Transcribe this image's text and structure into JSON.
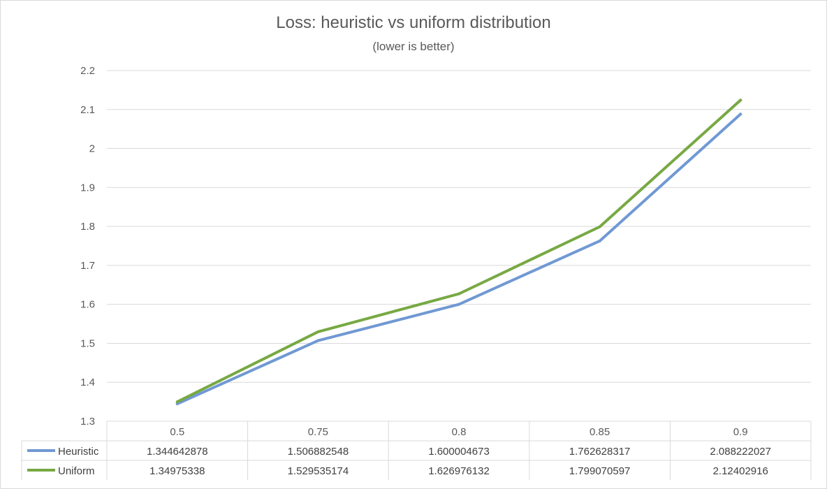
{
  "chart_data": {
    "type": "line",
    "title": "Loss: heuristic vs uniform distribution",
    "subtitle": "(lower is better)",
    "categories": [
      "0.5",
      "0.75",
      "0.8",
      "0.85",
      "0.9"
    ],
    "ylim": [
      1.3,
      2.2
    ],
    "yticks": [
      "1.3",
      "1.4",
      "1.5",
      "1.6",
      "1.7",
      "1.8",
      "1.9",
      "2",
      "2.1",
      "2.2"
    ],
    "grid": true,
    "legend": "data-table",
    "series": [
      {
        "name": "Heuristic",
        "color": "#7099d3",
        "values": [
          1.344642878,
          1.506882548,
          1.600004673,
          1.762628317,
          2.088222027
        ],
        "labels": [
          "1.344642878",
          "1.506882548",
          "1.600004673",
          "1.762628317",
          "2.088222027"
        ]
      },
      {
        "name": "Uniform",
        "color": "#77a943",
        "values": [
          1.34975338,
          1.529535174,
          1.626976132,
          1.799070597,
          2.12402916
        ],
        "labels": [
          "1.34975338",
          "1.529535174",
          "1.626976132",
          "1.799070597",
          "2.12402916"
        ]
      }
    ]
  }
}
